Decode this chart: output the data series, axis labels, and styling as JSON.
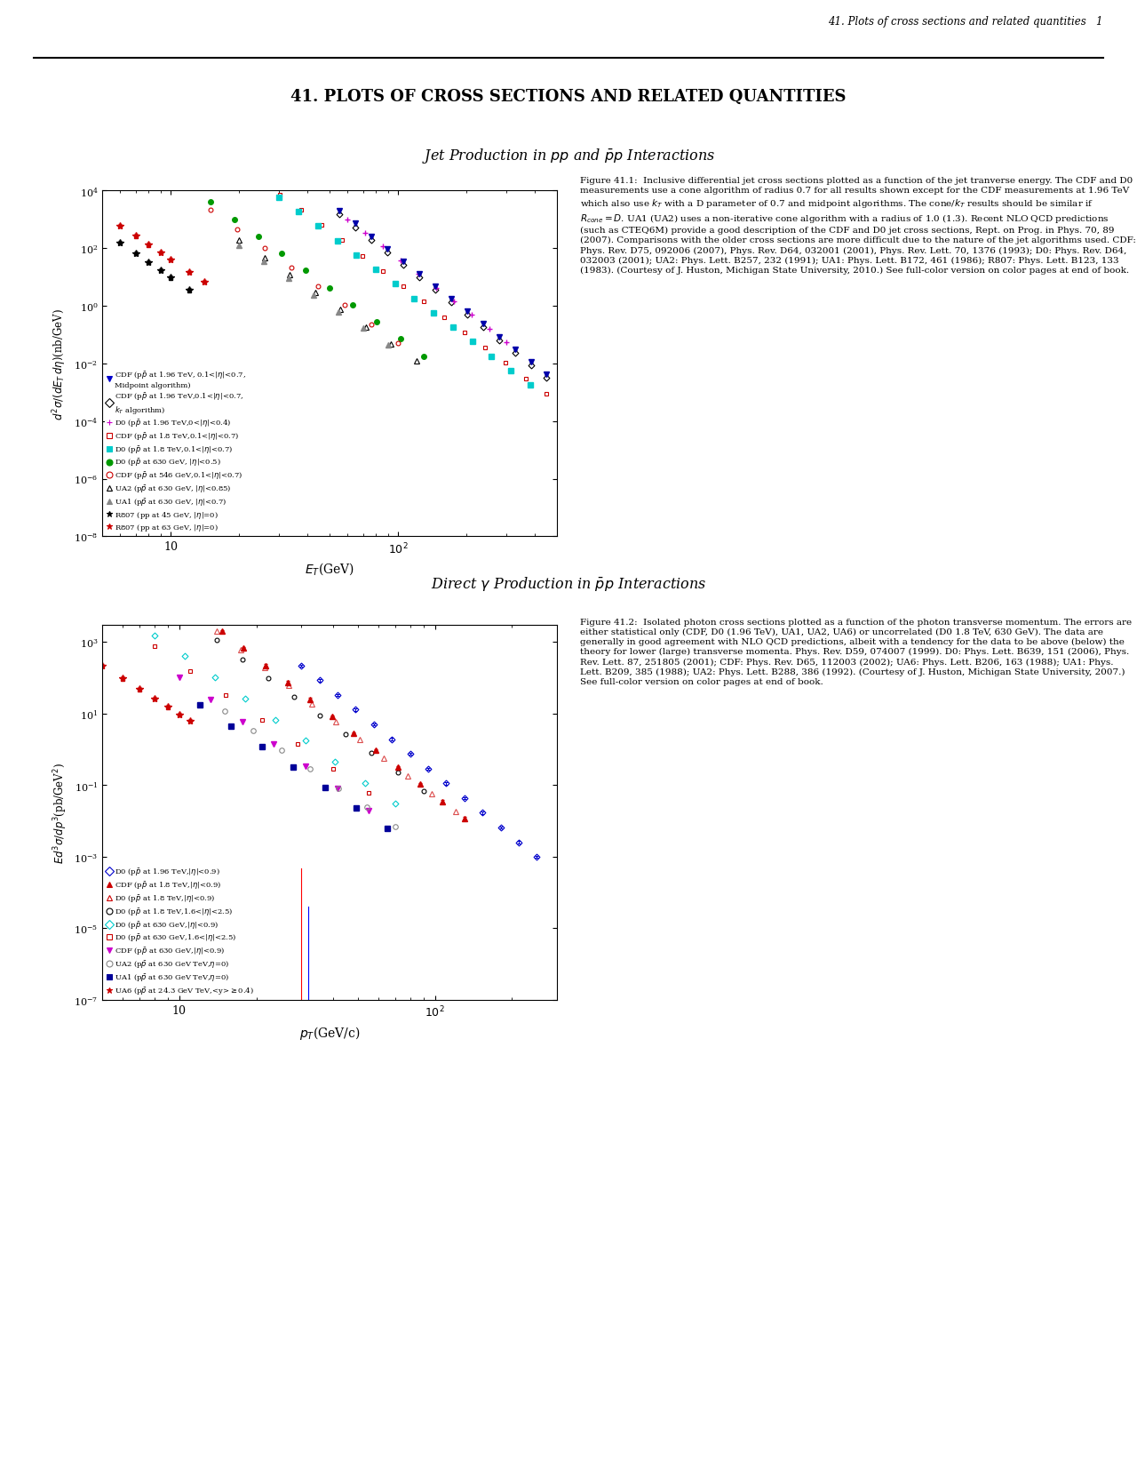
{
  "page_title": "41. PLOTS OF CROSS SECTIONS AND RELATED QUANTITIES",
  "header_text": "41. Plots of cross sections and related quantities",
  "header_page": "1",
  "plot1_title": "Jet Production in $pp$ and $\\bar{p}p$ Interactions",
  "plot1_ylabel": "$d^2\\sigma/(dE_T\\,d\\eta)$(nb/GeV)",
  "plot1_xlabel": "$E_T$(GeV)",
  "plot2_title": "Direct $\\gamma$ Production in $\\bar{p}p$ Interactions",
  "plot2_ylabel": "$Ed^3\\sigma/dp^3$(pb/GeV$^2$)",
  "plot2_xlabel": "$p_T$(GeV/c)",
  "fig1_caption_bold": "Figure 41.1:",
  "fig1_caption_rest": "  Inclusive differential jet cross sections plotted as a function of the jet tranverse energy. The CDF and D0 measurements use a cone algorithm of radius 0.7 for all results shown except for the CDF measurements at 1.96 TeV which also use $k_T$ with a D parameter of 0.7 and midpoint algorithms. The cone/$k_T$ results should be similar if $R_{cone} = D$. UA1 (UA2) uses a non-iterative cone algorithm with a radius of 1.0 (1.3). Recent NLO QCD predictions (such as CTEQ6M) provide a good description of the CDF and D0 jet cross sections, Rept. on Prog. in Phys. 70, 89 (2007). Comparisons with the older cross sections are more difficult due to the nature of the jet algorithms used. CDF: Phys. Rev. D75, 092006 (2007), Phys. Rev. D64, 032001 (2001), Phys. Rev. Lett. 70, 1376 (1993); D0: Phys. Rev. D64, 032003 (2001); UA2: Phys. Lett. B257, 232 (1991); UA1: Phys. Lett. B172, 461 (1986); R807: Phys. Lett. B123, 133 (1983). (Courtesy of J. Huston, Michigan State University, 2010.) See full-color version on color pages at end of book.",
  "fig2_caption_bold": "Figure 41.2:",
  "fig2_caption_rest": "  Isolated photon cross sections plotted as a function of the photon transverse momentum. The errors are either statistical only (CDF, D0 (1.96 TeV), UA1, UA2, UA6) or uncorrelated (D0 1.8 TeV, 630 GeV). The data are generally in good agreement with NLO QCD predictions, albeit with a tendency for the data to be above (below) the theory for lower (large) transverse momenta. Phys. Rev. D59, 074007 (1999). D0: Phys. Lett. B639, 151 (2006), Phys. Rev. Lett. 87, 251805 (2001); CDF: Phys. Rev. D65, 112003 (2002); UA6: Phys. Lett. B206, 163 (1988); UA1: Phys. Lett. B209, 385 (1988); UA2: Phys. Lett. B288, 386 (1992). (Courtesy of J. Huston, Michigan State University, 2007.) See full-color version on color pages at end of book.",
  "legend1": [
    {
      "label": "CDF (p$\\bar{p}$ at 1.96 TeV, 0.1<|$\\eta$|<0.7,\nMidpoint algorithm)",
      "color": "#0000cc",
      "marker": "v",
      "filled": true
    },
    {
      "label": "CDF (p$\\bar{p}$ at 1.96 TeV,0.1<|$\\eta$|<0.7,\n$k_T$ algorithm)",
      "color": "#000000",
      "marker": "D",
      "filled": false
    },
    {
      "label": "D0 (p$\\bar{p}$ at 1.96 TeV,0<|$\\eta$|<0.4)",
      "color": "#cc00cc",
      "marker": "+",
      "filled": true
    },
    {
      "label": "CDF (p$\\bar{p}$ at 1.8 TeV,0.1<|$\\eta$|<0.7)",
      "color": "#cc0000",
      "marker": "s",
      "filled": false
    },
    {
      "label": "D0 (p$\\bar{p}$ at 1.8 TeV,0.1<|$\\eta$|<0.7)",
      "color": "#00cccc",
      "marker": "s",
      "filled": true
    },
    {
      "label": "D0 (p$\\bar{p}$ at 630 GeV, |$\\eta$|<0.5)",
      "color": "#009900",
      "marker": "o",
      "filled": true
    },
    {
      "label": "CDF (p$\\bar{p}$ at 546 GeV,0.1<|$\\eta$|<0.7)",
      "color": "#cc0000",
      "marker": "o",
      "filled": false
    },
    {
      "label": "UA2 (p$\\bar{p}$ at 630 GeV, |$\\eta$|<0.85)",
      "color": "#000000",
      "marker": "^",
      "filled": false
    },
    {
      "label": "UA1 (p$\\bar{p}$ at 630 GeV, |$\\eta$|<0.7)",
      "color": "#888888",
      "marker": "^",
      "filled": true
    },
    {
      "label": "R807 (pp at 45 GeV, |$\\eta$|=0)",
      "color": "#000000",
      "marker": "*",
      "filled": true
    },
    {
      "label": "R807 (pp at 63 GeV, |$\\eta$|=0)",
      "color": "#cc0000",
      "marker": "*",
      "filled": true
    }
  ],
  "legend2": [
    {
      "label": "D0 (p$\\bar{p}$ at 1.96 TeV,|$\\eta$|<0.9)",
      "color": "#0000cc",
      "marker": "D",
      "filled": false
    },
    {
      "label": "CDF (p$\\bar{p}$ at 1.8 TeV,|$\\eta$|<0.9)",
      "color": "#cc0000",
      "marker": "^",
      "filled": true
    },
    {
      "label": "D0 (p$\\bar{p}$ at 1.8 TeV,|$\\eta$|<0.9)",
      "color": "#cc0000",
      "marker": "^",
      "filled": false
    },
    {
      "label": "D0 (p$\\bar{p}$ at 1.8 TeV,1.6<|$\\eta$|<2.5)",
      "color": "#000000",
      "marker": "o",
      "filled": false
    },
    {
      "label": "D0 (p$\\bar{p}$ at 630 GeV,|$\\eta$|<0.9)",
      "color": "#00cccc",
      "marker": "D",
      "filled": false
    },
    {
      "label": "D0 (p$\\bar{p}$ at 630 GeV,1.6<|$\\eta$|<2.5)",
      "color": "#cc0000",
      "marker": "s",
      "filled": false
    },
    {
      "label": "CDF (p$\\bar{p}$ at 630 GeV,|$\\eta$|<0.9)",
      "color": "#cc00cc",
      "marker": "v",
      "filled": true
    },
    {
      "label": "UA2 (p$\\bar{p}$ at 630 GeV TeV,$\\eta$=0)",
      "color": "#888888",
      "marker": "o",
      "filled": false
    },
    {
      "label": "UA1 (p$\\bar{p}$ at 630 GeV TeV,$\\eta$=0)",
      "color": "#000099",
      "marker": "s",
      "filled": true
    },
    {
      "label": "UA6 (p$\\bar{p}$ at 24.3 GeV TeV,<y>$\\geq$0.4)",
      "color": "#cc0000",
      "marker": "*",
      "filled": true
    }
  ]
}
